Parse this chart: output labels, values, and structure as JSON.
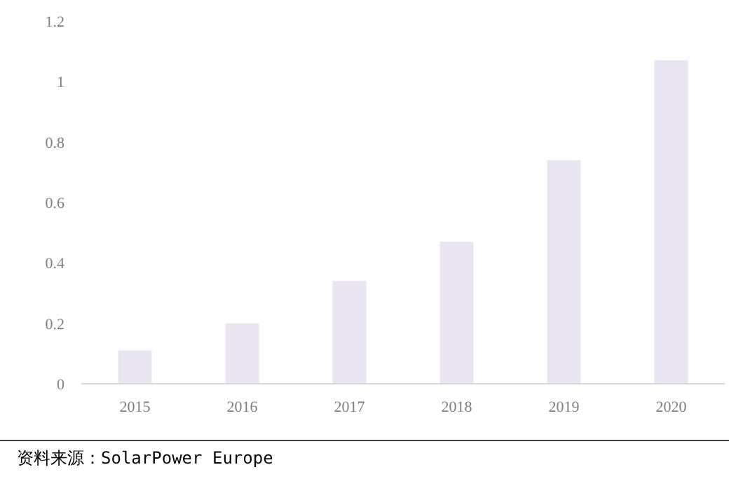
{
  "chart_data": {
    "type": "bar",
    "categories": [
      "2015",
      "2016",
      "2017",
      "2018",
      "2019",
      "2020"
    ],
    "values": [
      0.11,
      0.2,
      0.34,
      0.47,
      0.74,
      1.07
    ],
    "color": "#e9e6f2",
    "ylim": [
      0,
      1.2
    ],
    "yticks": [
      0,
      0.2,
      0.4,
      0.6,
      0.8,
      1,
      1.2
    ],
    "annotations": [
      "资料来源：SolarPower Europe"
    ]
  }
}
